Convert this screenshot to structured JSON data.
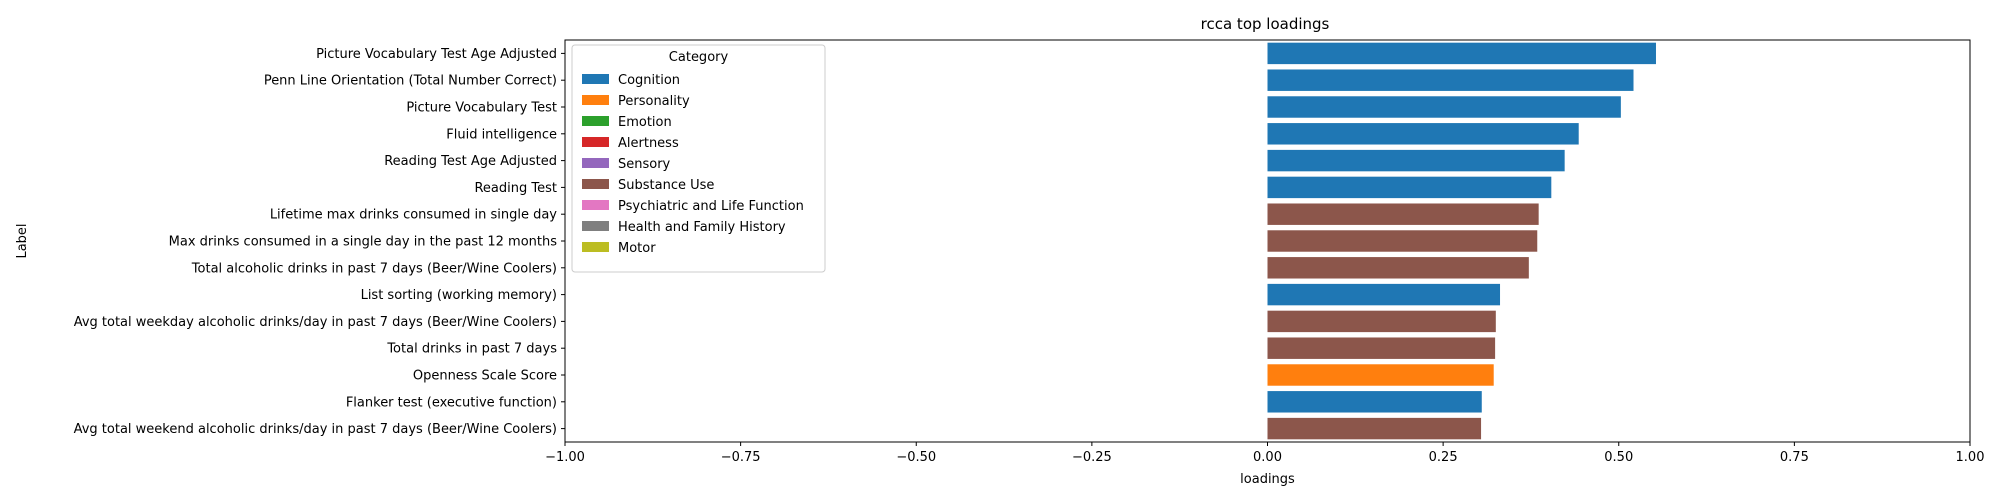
{
  "chart_data": {
    "type": "bar",
    "orientation": "horizontal",
    "title": "rcca top loadings",
    "xlabel": "loadings",
    "ylabel": "Label",
    "xlim": [
      -1.0,
      1.0
    ],
    "xticks": [
      -1.0,
      -0.75,
      -0.5,
      -0.25,
      0.0,
      0.25,
      0.5,
      0.75,
      1.0
    ],
    "xtick_labels": [
      "−1.00",
      "−0.75",
      "−0.50",
      "−0.25",
      "0.00",
      "0.25",
      "0.50",
      "0.75",
      "1.00"
    ],
    "grid": false,
    "legend_position": "top-left",
    "legend": {
      "title": "Category",
      "entries": [
        {
          "name": "Cognition",
          "color": "#1f77b4"
        },
        {
          "name": "Personality",
          "color": "#ff7f0e"
        },
        {
          "name": "Emotion",
          "color": "#2ca02c"
        },
        {
          "name": "Alertness",
          "color": "#d62728"
        },
        {
          "name": "Sensory",
          "color": "#9467bd"
        },
        {
          "name": "Substance Use",
          "color": "#8c564b"
        },
        {
          "name": "Psychiatric and Life Function",
          "color": "#e377c2"
        },
        {
          "name": "Health and Family History",
          "color": "#7f7f7f"
        },
        {
          "name": "Motor",
          "color": "#bcbd22"
        }
      ]
    },
    "bars": [
      {
        "label": "Picture Vocabulary Test Age Adjusted",
        "value": 0.553,
        "category": "Cognition"
      },
      {
        "label": "Penn Line Orientation (Total Number Correct)",
        "value": 0.521,
        "category": "Cognition"
      },
      {
        "label": "Picture Vocabulary Test",
        "value": 0.503,
        "category": "Cognition"
      },
      {
        "label": "Fluid intelligence",
        "value": 0.443,
        "category": "Cognition"
      },
      {
        "label": "Reading Test Age Adjusted",
        "value": 0.423,
        "category": "Cognition"
      },
      {
        "label": "Reading Test",
        "value": 0.404,
        "category": "Cognition"
      },
      {
        "label": "Lifetime max drinks consumed in single day",
        "value": 0.386,
        "category": "Substance Use"
      },
      {
        "label": "Max drinks consumed in a single day in the past 12 months",
        "value": 0.384,
        "category": "Substance Use"
      },
      {
        "label": "Total alcoholic drinks in past 7 days (Beer/Wine Coolers)",
        "value": 0.372,
        "category": "Substance Use"
      },
      {
        "label": "List sorting (working memory)",
        "value": 0.331,
        "category": "Cognition"
      },
      {
        "label": "Avg total weekday alcoholic drinks/day in past 7 days (Beer/Wine Coolers)",
        "value": 0.325,
        "category": "Substance Use"
      },
      {
        "label": "Total drinks in past 7 days",
        "value": 0.324,
        "category": "Substance Use"
      },
      {
        "label": "Openness Scale Score",
        "value": 0.322,
        "category": "Personality"
      },
      {
        "label": "Flanker test (executive function)",
        "value": 0.305,
        "category": "Cognition"
      },
      {
        "label": "Avg total weekend alcoholic drinks/day in past 7 days (Beer/Wine Coolers)",
        "value": 0.304,
        "category": "Substance Use"
      }
    ]
  }
}
